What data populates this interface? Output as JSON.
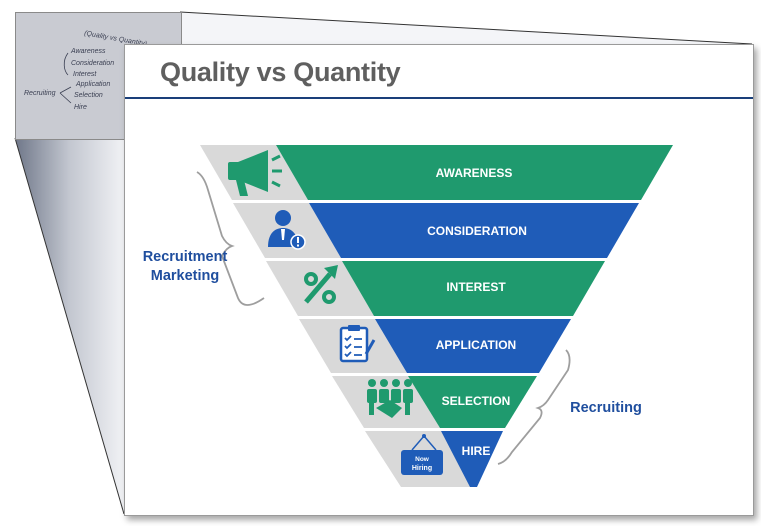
{
  "slide": {
    "title": "Quality vs Quantity"
  },
  "thumbnail": {
    "icon": "handwritten-note-photo",
    "lines": [
      "(Quality vs Quantity)",
      "Awareness",
      "Consideration",
      "Interest",
      "Application",
      "Selection",
      "Hire",
      "Recruiting"
    ]
  },
  "funnel": {
    "stages": [
      {
        "label": "AWARENESS",
        "icon": "megaphone-icon",
        "color": "#1f9a6e"
      },
      {
        "label": "CONSIDERATION",
        "icon": "person-alert-icon",
        "color": "#1f5cb8"
      },
      {
        "label": "INTEREST",
        "icon": "percent-arrow-icon",
        "color": "#1f9a6e"
      },
      {
        "label": "APPLICATION",
        "icon": "clipboard-checklist-icon",
        "color": "#1f5cb8"
      },
      {
        "label": "SELECTION",
        "icon": "handshake-group-icon",
        "color": "#1f9a6e"
      },
      {
        "label": "HIRE",
        "icon": "now-hiring-sign-icon",
        "color": "#1f5cb8",
        "sign_text": [
          "Now",
          "Hiring"
        ]
      }
    ],
    "icon_band_color": "#d9d9d9"
  },
  "groups": {
    "marketing_label": [
      "Recruitment",
      "Marketing"
    ],
    "recruiting_label": "Recruiting"
  }
}
